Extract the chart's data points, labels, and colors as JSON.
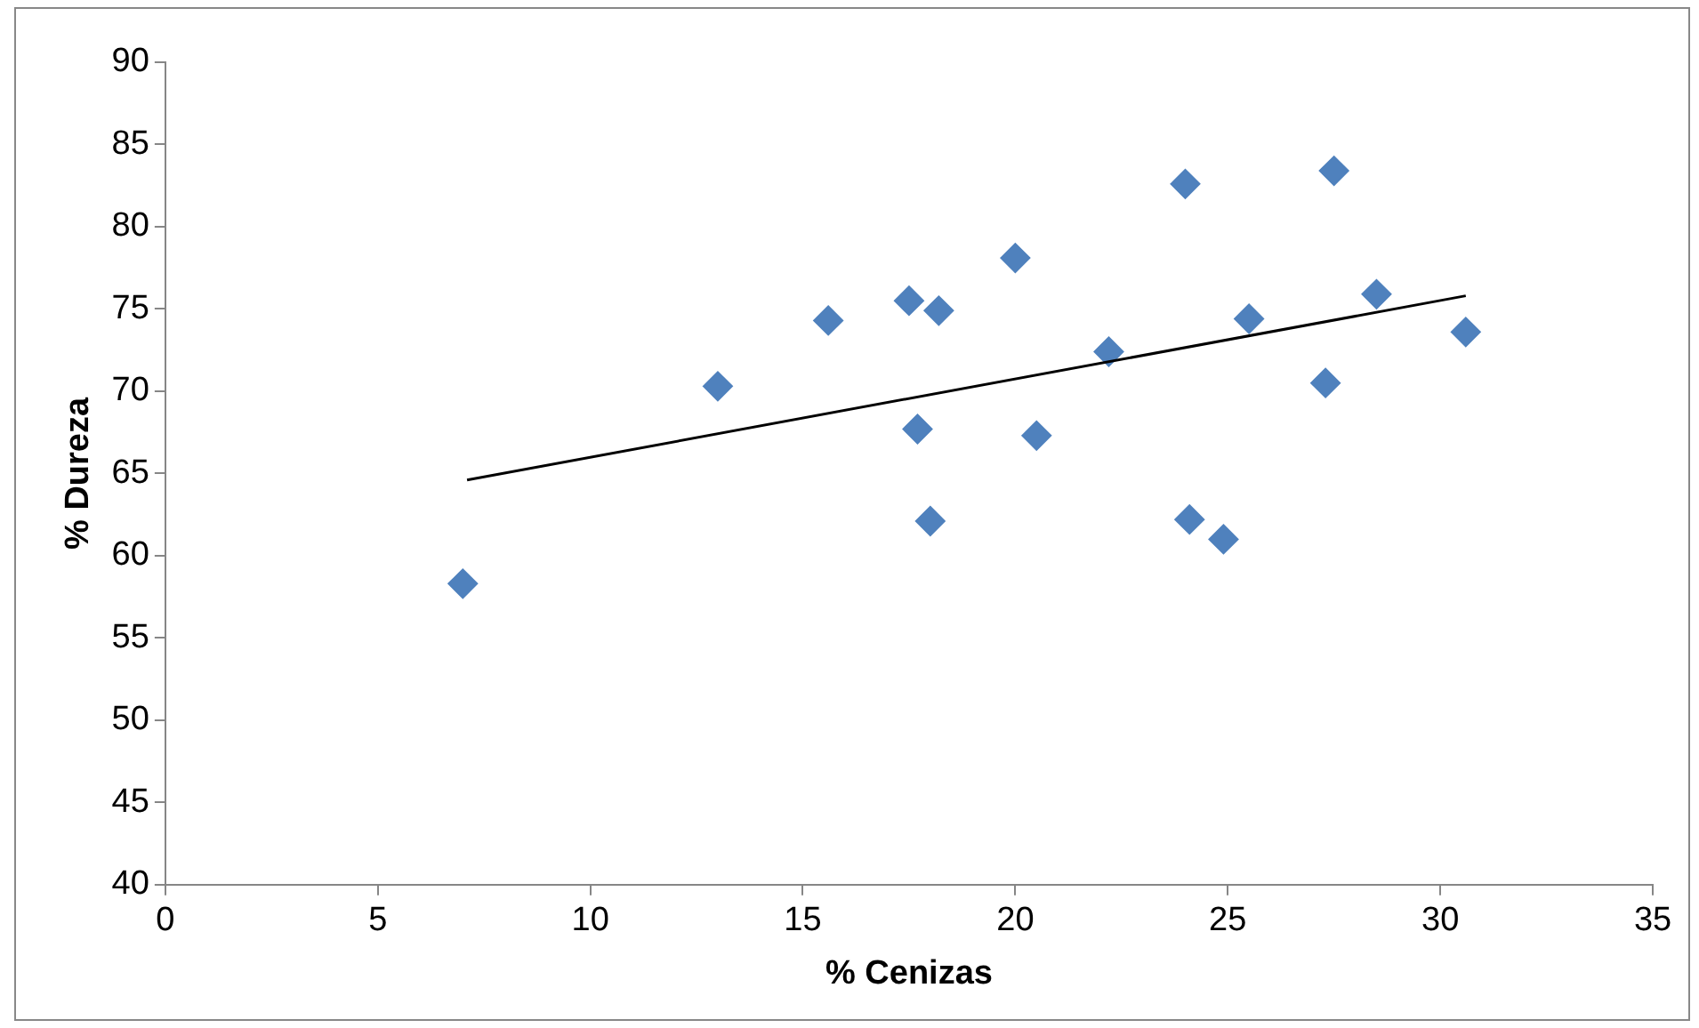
{
  "chart_data": {
    "type": "scatter",
    "xlabel": "% Cenizas",
    "ylabel": "% Dureza",
    "xlim": [
      0,
      35
    ],
    "xticks": [
      0,
      5,
      10,
      15,
      20,
      25,
      30,
      35
    ],
    "ylim": [
      40,
      90
    ],
    "yticks": [
      40,
      45,
      50,
      55,
      60,
      65,
      70,
      75,
      80,
      85,
      90
    ],
    "grid": false,
    "legend": false,
    "marker": "diamond",
    "series": [
      {
        "color": "#4f81bd",
        "x": [
          7.0,
          13.0,
          15.6,
          17.5,
          17.7,
          18.0,
          18.2,
          20.0,
          20.5,
          22.2,
          24.0,
          24.1,
          24.9,
          25.5,
          27.3,
          27.5,
          28.5,
          30.6
        ],
        "values": [
          58.3,
          70.3,
          74.3,
          75.5,
          67.7,
          62.1,
          74.9,
          78.1,
          67.3,
          72.4,
          82.6,
          62.2,
          61.0,
          74.4,
          70.5,
          83.4,
          75.9,
          73.6
        ]
      },
      {
        "type": "line",
        "color": "#000000",
        "marker": "none",
        "x": [
          7.1,
          30.6
        ],
        "values": [
          64.6,
          75.8
        ]
      }
    ]
  }
}
